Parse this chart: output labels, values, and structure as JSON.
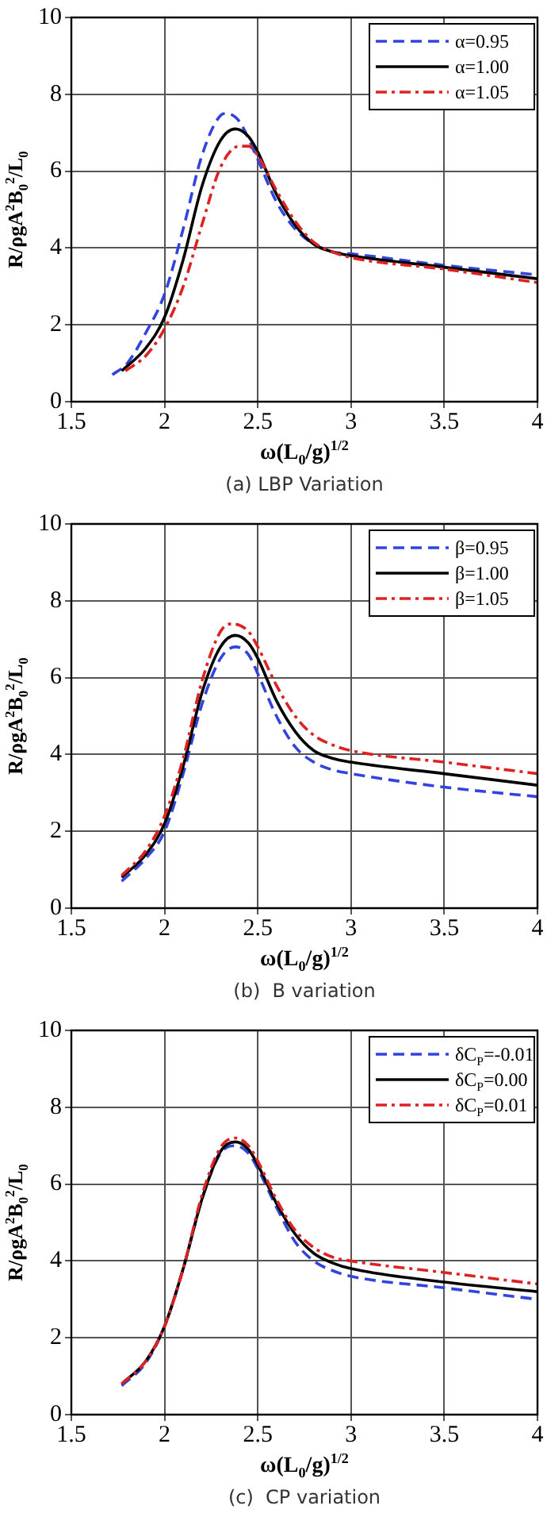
{
  "chart_data": [
    {
      "type": "line",
      "xlabel": "ω(L$_{0}$/g)$^{1/2}$",
      "ylabel": "R/ρgA$^{2}$B$_{0}$$^{2}$/L$_{0}$",
      "xlim": [
        1.5,
        4
      ],
      "ylim": [
        0,
        10
      ],
      "xticks": [
        1.5,
        2,
        2.5,
        3,
        3.5,
        4
      ],
      "yticks": [
        0,
        2,
        4,
        6,
        8,
        10
      ],
      "grid": true,
      "legend": "top right",
      "annotations": [
        "(a) LBP Variation"
      ],
      "series": [
        {
          "name": "α=0.95",
          "color": "#3344dd",
          "line_style": "dashed",
          "x": [
            1.72,
            1.8,
            1.9,
            2.0,
            2.1,
            2.2,
            2.3,
            2.33,
            2.4,
            2.5,
            2.6,
            2.7,
            2.8,
            2.9,
            3.0,
            3.5,
            4.0
          ],
          "values": [
            0.7,
            1.0,
            1.8,
            2.8,
            4.5,
            6.4,
            7.45,
            7.5,
            7.3,
            6.3,
            5.2,
            4.5,
            4.1,
            3.9,
            3.85,
            3.55,
            3.3
          ]
        },
        {
          "name": "α=1.00",
          "color": "#000000",
          "line_style": "solid",
          "x": [
            1.77,
            1.9,
            2.0,
            2.1,
            2.2,
            2.3,
            2.38,
            2.45,
            2.5,
            2.6,
            2.7,
            2.8,
            2.9,
            3.0,
            3.5,
            4.0
          ],
          "values": [
            0.8,
            1.4,
            2.2,
            3.7,
            5.6,
            6.8,
            7.1,
            6.9,
            6.5,
            5.4,
            4.6,
            4.1,
            3.9,
            3.8,
            3.5,
            3.2
          ]
        },
        {
          "name": "α=1.05",
          "color": "#dd2222",
          "line_style": "dashdot",
          "x": [
            1.79,
            1.9,
            2.0,
            2.1,
            2.2,
            2.3,
            2.4,
            2.45,
            2.5,
            2.6,
            2.7,
            2.8,
            2.9,
            3.0,
            3.5,
            4.0
          ],
          "values": [
            0.8,
            1.2,
            1.9,
            3.0,
            4.6,
            6.1,
            6.65,
            6.65,
            6.4,
            5.5,
            4.7,
            4.15,
            3.9,
            3.75,
            3.45,
            3.1
          ]
        }
      ]
    },
    {
      "type": "line",
      "xlabel": "ω(L$_{0}$/g)$^{1/2}$",
      "ylabel": "R/ρgA$^{2}$B$_{0}$$^{2}$/L$_{0}$",
      "xlim": [
        1.5,
        4
      ],
      "ylim": [
        0,
        10
      ],
      "xticks": [
        1.5,
        2,
        2.5,
        3,
        3.5,
        4
      ],
      "yticks": [
        0,
        2,
        4,
        6,
        8,
        10
      ],
      "grid": true,
      "legend": "top right",
      "annotations": [
        "(b)  B variation"
      ],
      "series": [
        {
          "name": "β=0.95",
          "color": "#3344dd",
          "line_style": "dashed",
          "x": [
            1.77,
            1.9,
            2.0,
            2.1,
            2.2,
            2.3,
            2.38,
            2.45,
            2.5,
            2.6,
            2.7,
            2.8,
            2.9,
            3.0,
            3.5,
            4.0
          ],
          "values": [
            0.7,
            1.3,
            2.0,
            3.5,
            5.3,
            6.5,
            6.8,
            6.6,
            6.1,
            5.0,
            4.2,
            3.8,
            3.6,
            3.5,
            3.15,
            2.9
          ]
        },
        {
          "name": "β=1.00",
          "color": "#000000",
          "line_style": "solid",
          "x": [
            1.77,
            1.9,
            2.0,
            2.1,
            2.2,
            2.3,
            2.38,
            2.45,
            2.5,
            2.6,
            2.7,
            2.8,
            2.9,
            3.0,
            3.5,
            4.0
          ],
          "values": [
            0.8,
            1.4,
            2.2,
            3.7,
            5.6,
            6.8,
            7.1,
            6.9,
            6.5,
            5.4,
            4.6,
            4.1,
            3.9,
            3.8,
            3.5,
            3.2
          ]
        },
        {
          "name": "β=1.05",
          "color": "#dd2222",
          "line_style": "dashdot",
          "x": [
            1.77,
            1.9,
            2.0,
            2.1,
            2.2,
            2.3,
            2.36,
            2.45,
            2.5,
            2.6,
            2.7,
            2.8,
            2.9,
            3.0,
            3.5,
            4.0
          ],
          "values": [
            0.85,
            1.5,
            2.4,
            3.9,
            5.9,
            7.2,
            7.4,
            7.2,
            6.8,
            5.8,
            5.0,
            4.5,
            4.25,
            4.1,
            3.8,
            3.5
          ]
        }
      ]
    },
    {
      "type": "line",
      "xlabel": "ω(L$_{0}$/g)$^{1/2}$",
      "ylabel": "R/ρgA$^{2}$B$_{0}$$^{2}$/L$_{0}$",
      "xlim": [
        1.5,
        4
      ],
      "ylim": [
        0,
        10
      ],
      "xticks": [
        1.5,
        2,
        2.5,
        3,
        3.5,
        4
      ],
      "yticks": [
        0,
        2,
        4,
        6,
        8,
        10
      ],
      "grid": true,
      "legend": "top right",
      "annotations": [
        "(c)  CP variation"
      ],
      "series": [
        {
          "name": "δC$_{P}$=-0.01",
          "color": "#3344dd",
          "line_style": "dashed",
          "x": [
            1.77,
            1.9,
            2.0,
            2.1,
            2.2,
            2.3,
            2.38,
            2.45,
            2.5,
            2.6,
            2.7,
            2.8,
            2.9,
            3.0,
            3.5,
            4.0
          ],
          "values": [
            0.75,
            1.35,
            2.3,
            3.8,
            5.6,
            6.8,
            7.0,
            6.8,
            6.4,
            5.4,
            4.5,
            4.0,
            3.75,
            3.6,
            3.3,
            3.0
          ]
        },
        {
          "name": "δC$_{P}$=0.00",
          "color": "#000000",
          "line_style": "solid",
          "x": [
            1.77,
            1.9,
            2.0,
            2.1,
            2.2,
            2.3,
            2.38,
            2.45,
            2.5,
            2.6,
            2.7,
            2.8,
            2.9,
            3.0,
            3.5,
            4.0
          ],
          "values": [
            0.8,
            1.4,
            2.3,
            3.8,
            5.6,
            6.85,
            7.1,
            6.9,
            6.5,
            5.5,
            4.7,
            4.2,
            3.95,
            3.8,
            3.45,
            3.2
          ]
        },
        {
          "name": "δC$_{P}$=0.01",
          "color": "#dd2222",
          "line_style": "dashdot",
          "x": [
            1.77,
            1.9,
            2.0,
            2.1,
            2.2,
            2.3,
            2.38,
            2.45,
            2.5,
            2.6,
            2.7,
            2.8,
            2.9,
            3.0,
            3.5,
            4.0
          ],
          "values": [
            0.8,
            1.4,
            2.3,
            3.8,
            5.7,
            6.95,
            7.2,
            7.0,
            6.6,
            5.6,
            4.8,
            4.35,
            4.1,
            4.0,
            3.7,
            3.4
          ]
        }
      ]
    }
  ]
}
